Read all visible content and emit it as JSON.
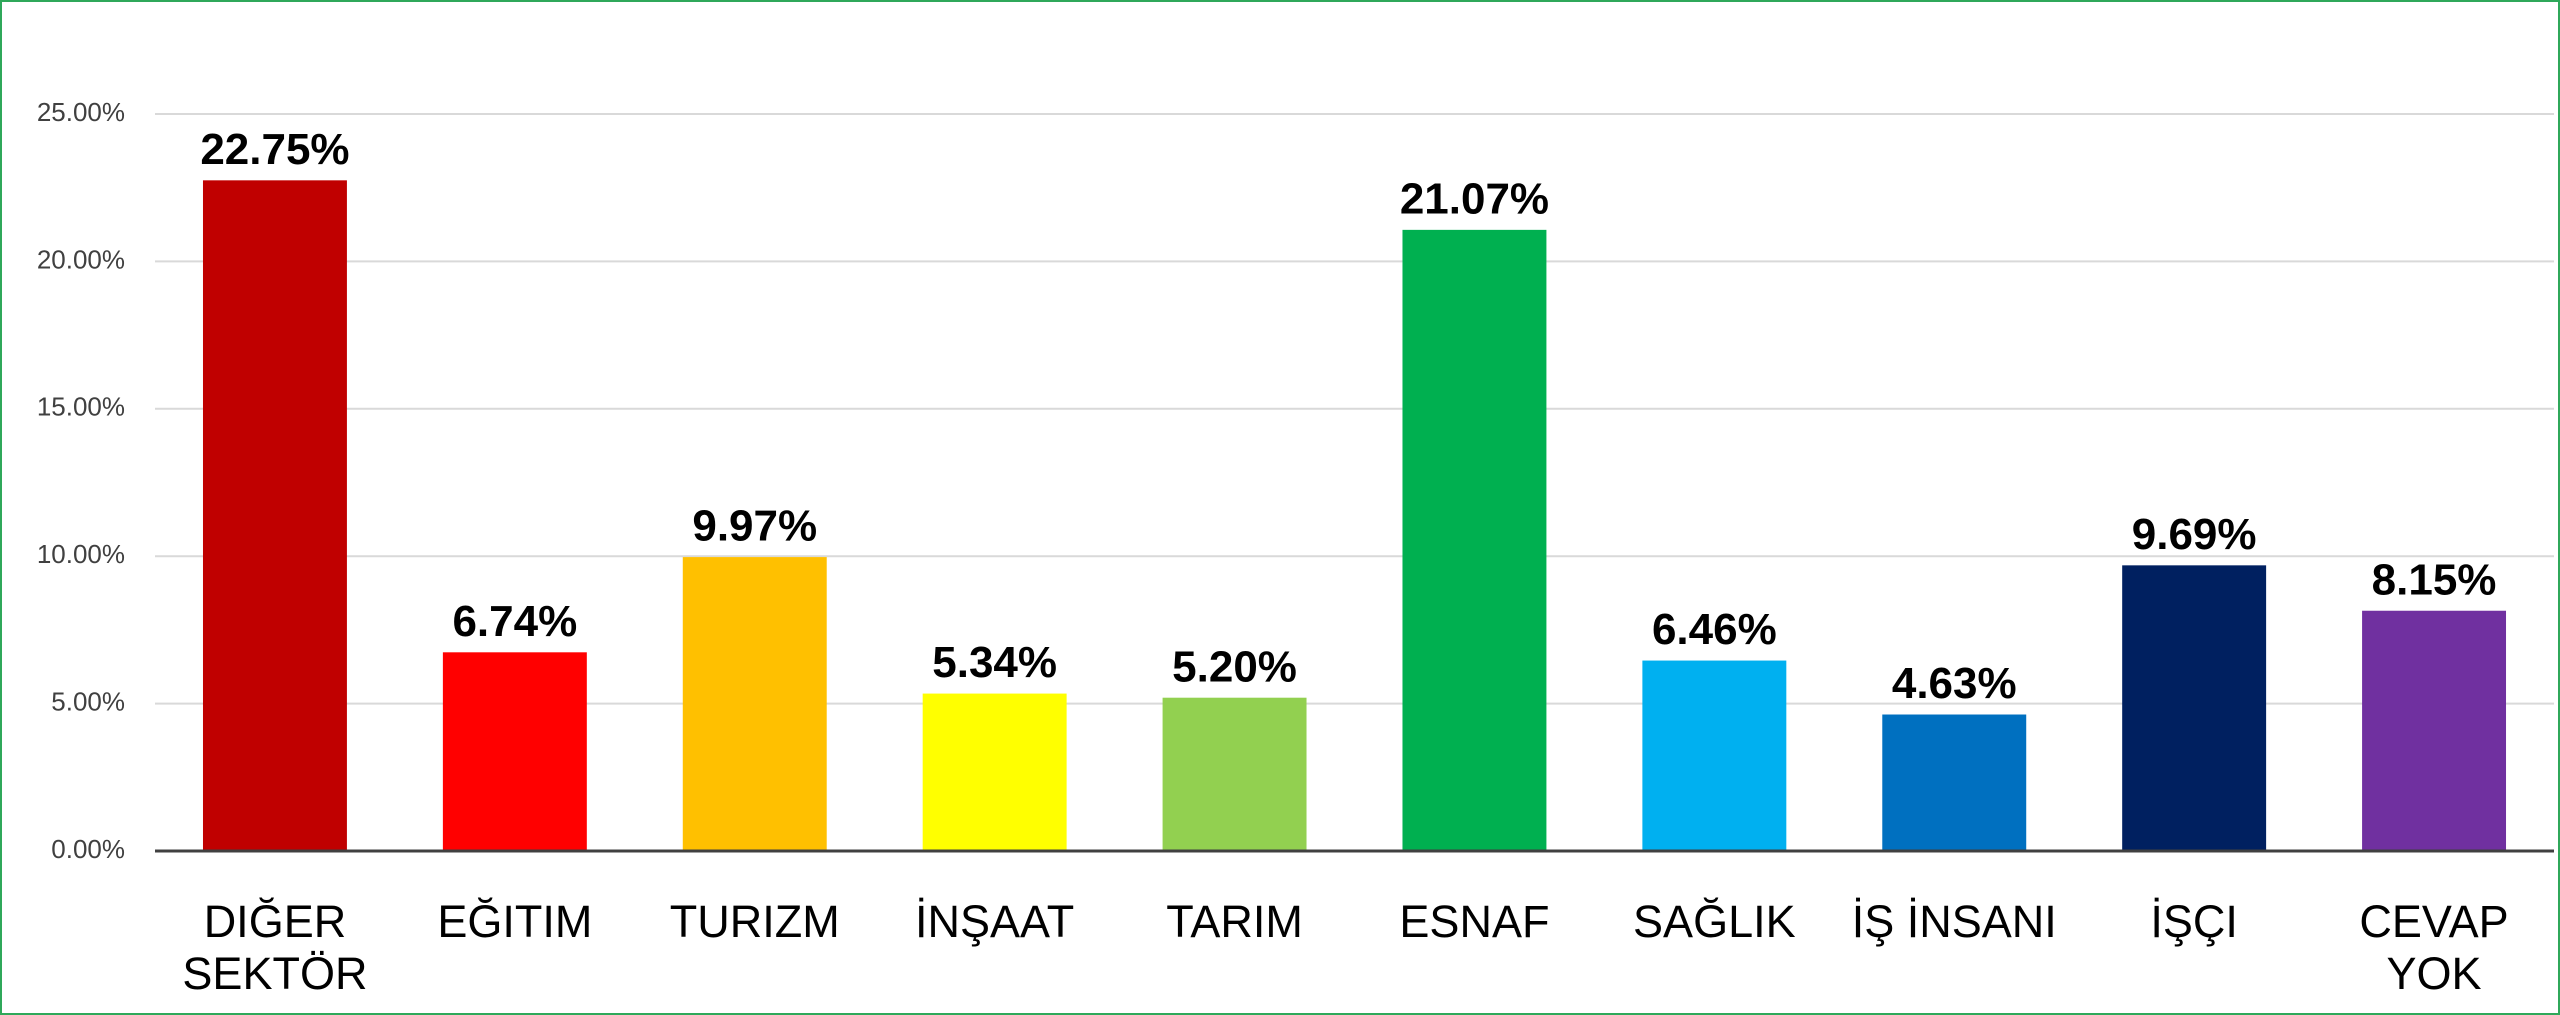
{
  "chart_data": {
    "type": "bar",
    "categories": [
      "DIĞER SEKTÖR",
      "EĞITIM",
      "TURIZM",
      "İNŞAAT",
      "TARIM",
      "ESNAF",
      "SAĞLIK",
      "İŞ İNSANI",
      "İŞÇI",
      "CEVAP YOK"
    ],
    "values": [
      22.75,
      6.74,
      9.97,
      5.34,
      5.2,
      21.07,
      6.46,
      4.63,
      9.69,
      8.15
    ],
    "value_labels": [
      "22.75%",
      "6.74%",
      "9.97%",
      "5.34%",
      "5.20%",
      "21.07%",
      "6.46%",
      "4.63%",
      "9.69%",
      "8.15%"
    ],
    "colors": [
      "#C00000",
      "#FF0000",
      "#FFC000",
      "#FFFF00",
      "#92D050",
      "#00B050",
      "#00B0F0",
      "#0070C0",
      "#002060",
      "#7030A0"
    ],
    "ylim": [
      0,
      25
    ],
    "yticks": [
      {
        "value": 0,
        "label": "0.00%"
      },
      {
        "value": 5,
        "label": "5.00%"
      },
      {
        "value": 10,
        "label": "10.00%"
      },
      {
        "value": 15,
        "label": "15.00%"
      },
      {
        "value": 20,
        "label": "20.00%"
      },
      {
        "value": 25,
        "label": "25.00%"
      }
    ],
    "grid": true
  }
}
